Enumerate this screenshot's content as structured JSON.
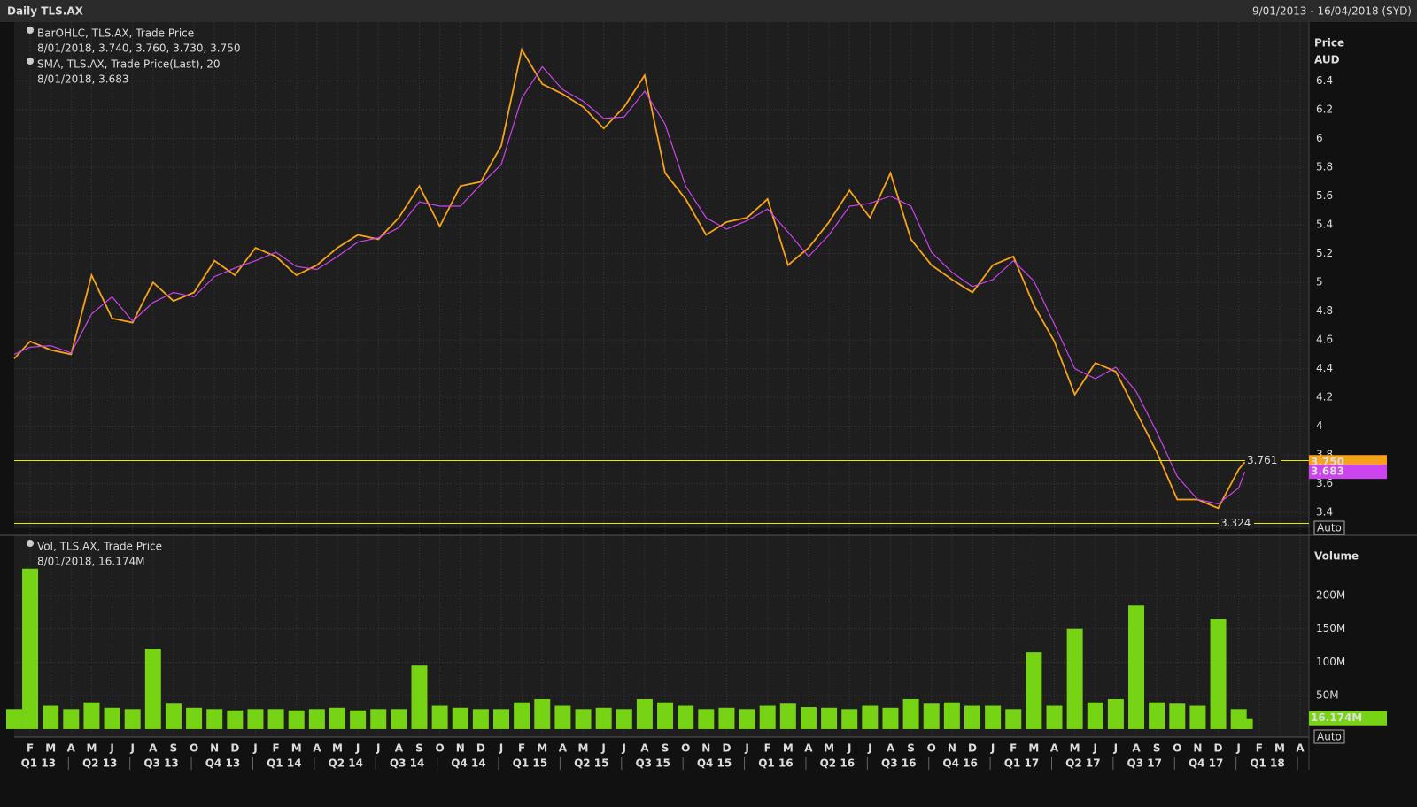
{
  "header": {
    "title": "Daily TLS.AX",
    "range": "9/01/2013 - 16/04/2018 (SYD)"
  },
  "auto_label": "Auto",
  "xlim": [
    -0.78,
    62.43
  ],
  "xticks": [
    {
      "value": 0,
      "label": "F"
    },
    {
      "value": 1,
      "label": "M"
    },
    {
      "value": 2,
      "label": "A"
    },
    {
      "value": 3,
      "label": "M"
    },
    {
      "value": 4,
      "label": "J"
    },
    {
      "value": 5,
      "label": "J"
    },
    {
      "value": 6,
      "label": "A"
    },
    {
      "value": 7,
      "label": "S"
    },
    {
      "value": 8,
      "label": "O"
    },
    {
      "value": 9,
      "label": "N"
    },
    {
      "value": 10,
      "label": "D"
    },
    {
      "value": 11,
      "label": "J"
    },
    {
      "value": 12,
      "label": "F"
    },
    {
      "value": 13,
      "label": "M"
    },
    {
      "value": 14,
      "label": "A"
    },
    {
      "value": 15,
      "label": "M"
    },
    {
      "value": 16,
      "label": "J"
    },
    {
      "value": 17,
      "label": "J"
    },
    {
      "value": 18,
      "label": "A"
    },
    {
      "value": 19,
      "label": "S"
    },
    {
      "value": 20,
      "label": "O"
    },
    {
      "value": 21,
      "label": "N"
    },
    {
      "value": 22,
      "label": "D"
    },
    {
      "value": 23,
      "label": "J"
    },
    {
      "value": 24,
      "label": "F"
    },
    {
      "value": 25,
      "label": "M"
    },
    {
      "value": 26,
      "label": "A"
    },
    {
      "value": 27,
      "label": "M"
    },
    {
      "value": 28,
      "label": "J"
    },
    {
      "value": 29,
      "label": "J"
    },
    {
      "value": 30,
      "label": "A"
    },
    {
      "value": 31,
      "label": "S"
    },
    {
      "value": 32,
      "label": "O"
    },
    {
      "value": 33,
      "label": "N"
    },
    {
      "value": 34,
      "label": "D"
    },
    {
      "value": 35,
      "label": "J"
    },
    {
      "value": 36,
      "label": "F"
    },
    {
      "value": 37,
      "label": "M"
    },
    {
      "value": 38,
      "label": "A"
    },
    {
      "value": 39,
      "label": "M"
    },
    {
      "value": 40,
      "label": "J"
    },
    {
      "value": 41,
      "label": "J"
    },
    {
      "value": 42,
      "label": "A"
    },
    {
      "value": 43,
      "label": "S"
    },
    {
      "value": 44,
      "label": "O"
    },
    {
      "value": 45,
      "label": "N"
    },
    {
      "value": 46,
      "label": "D"
    },
    {
      "value": 47,
      "label": "J"
    },
    {
      "value": 48,
      "label": "F"
    },
    {
      "value": 49,
      "label": "M"
    },
    {
      "value": 50,
      "label": "A"
    },
    {
      "value": 51,
      "label": "M"
    },
    {
      "value": 52,
      "label": "J"
    },
    {
      "value": 53,
      "label": "J"
    },
    {
      "value": 54,
      "label": "A"
    },
    {
      "value": 55,
      "label": "S"
    },
    {
      "value": 56,
      "label": "O"
    },
    {
      "value": 57,
      "label": "N"
    },
    {
      "value": 58,
      "label": "D"
    },
    {
      "value": 59,
      "label": "J"
    },
    {
      "value": 60,
      "label": "F"
    },
    {
      "value": 61,
      "label": "M"
    },
    {
      "value": 62,
      "label": "A"
    }
  ],
  "quarters": [
    {
      "value": 0.4,
      "label": "Q1 13"
    },
    {
      "value": 3.4,
      "label": "Q2 13"
    },
    {
      "value": 6.4,
      "label": "Q3 13"
    },
    {
      "value": 9.4,
      "label": "Q4 13"
    },
    {
      "value": 12.4,
      "label": "Q1 14"
    },
    {
      "value": 15.4,
      "label": "Q2 14"
    },
    {
      "value": 18.4,
      "label": "Q3 14"
    },
    {
      "value": 21.4,
      "label": "Q4 14"
    },
    {
      "value": 24.4,
      "label": "Q1 15"
    },
    {
      "value": 27.4,
      "label": "Q2 15"
    },
    {
      "value": 30.4,
      "label": "Q3 15"
    },
    {
      "value": 33.4,
      "label": "Q4 15"
    },
    {
      "value": 36.4,
      "label": "Q1 16"
    },
    {
      "value": 39.4,
      "label": "Q2 16"
    },
    {
      "value": 42.4,
      "label": "Q3 16"
    },
    {
      "value": 45.4,
      "label": "Q4 16"
    },
    {
      "value": 48.4,
      "label": "Q1 17"
    },
    {
      "value": 51.4,
      "label": "Q2 17"
    },
    {
      "value": 54.4,
      "label": "Q3 17"
    },
    {
      "value": 57.4,
      "label": "Q4 17"
    },
    {
      "value": 60.4,
      "label": "Q1 18"
    }
  ],
  "chart_data": [
    {
      "type": "line",
      "axis_label": "Price",
      "axis_unit": "AUD",
      "x": [
        -0.78,
        0,
        1,
        2,
        3,
        4,
        5,
        6,
        7,
        8,
        9,
        10,
        11,
        12,
        13,
        14,
        15,
        16,
        17,
        18,
        19,
        20,
        21,
        22,
        23,
        24,
        25,
        26,
        27,
        28,
        29,
        30,
        31,
        32,
        33,
        34,
        35,
        36,
        37,
        38,
        39,
        40,
        41,
        42,
        43,
        44,
        45,
        46,
        47,
        48,
        49,
        50,
        51,
        52,
        53,
        54,
        55,
        56,
        57,
        58,
        59,
        59.3
      ],
      "series": [
        {
          "name": "BarOHLC, TLS.AX, Trade Price",
          "legend_value": "8/01/2018, 3.740, 3.760, 3.730, 3.750",
          "color": "#f7a21b",
          "last_value_label": "3.750",
          "values": [
            4.47,
            4.59,
            4.53,
            4.5,
            5.05,
            4.75,
            4.72,
            5.0,
            4.87,
            4.93,
            5.15,
            5.05,
            5.24,
            5.18,
            5.05,
            5.12,
            5.24,
            5.33,
            5.3,
            5.45,
            5.67,
            5.39,
            5.67,
            5.7,
            5.95,
            6.62,
            6.38,
            6.31,
            6.22,
            6.07,
            6.22,
            6.44,
            5.76,
            5.58,
            5.33,
            5.42,
            5.45,
            5.58,
            5.12,
            5.24,
            5.42,
            5.64,
            5.45,
            5.76,
            5.3,
            5.12,
            5.02,
            4.93,
            5.12,
            5.18,
            4.84,
            4.59,
            4.22,
            4.44,
            4.38,
            4.1,
            3.82,
            3.49,
            3.49,
            3.43,
            3.7,
            3.75
          ]
        },
        {
          "name": "SMA, TLS.AX, Trade Price(Last),  20",
          "legend_value": "8/01/2018, 3.683",
          "color": "#cc44ee",
          "last_value_label": "3.683",
          "values": [
            4.5,
            4.55,
            4.56,
            4.51,
            4.78,
            4.9,
            4.73,
            4.86,
            4.93,
            4.9,
            5.04,
            5.1,
            5.15,
            5.21,
            5.11,
            5.09,
            5.18,
            5.28,
            5.31,
            5.38,
            5.56,
            5.53,
            5.53,
            5.68,
            5.82,
            6.28,
            6.5,
            6.34,
            6.26,
            6.14,
            6.15,
            6.33,
            6.1,
            5.67,
            5.45,
            5.37,
            5.43,
            5.51,
            5.35,
            5.18,
            5.33,
            5.53,
            5.55,
            5.6,
            5.53,
            5.21,
            5.07,
            4.97,
            5.02,
            5.15,
            5.01,
            4.71,
            4.4,
            4.33,
            4.41,
            4.24,
            3.96,
            3.65,
            3.49,
            3.46,
            3.57,
            3.683
          ]
        }
      ],
      "hlines": [
        3.761,
        3.324
      ],
      "hline_color": "#e8e800",
      "ylim": [
        3.29,
        6.81
      ],
      "yticks": [
        3.4,
        3.6,
        3.8,
        4,
        4.2,
        4.4,
        4.6,
        4.8,
        5,
        5.2,
        5.4,
        5.6,
        5.8,
        6,
        6.2,
        6.4
      ],
      "grid": true
    },
    {
      "type": "bar",
      "axis_label": "Volume",
      "x": [
        -0.78,
        0,
        1,
        2,
        3,
        4,
        5,
        6,
        7,
        8,
        9,
        10,
        11,
        12,
        13,
        14,
        15,
        16,
        17,
        18,
        19,
        20,
        21,
        22,
        23,
        24,
        25,
        26,
        27,
        28,
        29,
        30,
        31,
        32,
        33,
        34,
        35,
        36,
        37,
        38,
        39,
        40,
        41,
        42,
        43,
        44,
        45,
        46,
        47,
        48,
        49,
        50,
        51,
        52,
        53,
        54,
        55,
        56,
        57,
        58,
        59,
        59.3
      ],
      "series": [
        {
          "name": "Vol, TLS.AX, Trade Price",
          "legend_value": "8/01/2018, 16.174M",
          "color": "#77d414",
          "last_value_label": "16.174M",
          "values": [
            30,
            240,
            35,
            30,
            40,
            32,
            30,
            120,
            38,
            32,
            30,
            28,
            30,
            30,
            28,
            30,
            32,
            28,
            30,
            30,
            95,
            35,
            32,
            30,
            30,
            40,
            45,
            35,
            30,
            32,
            30,
            45,
            40,
            35,
            30,
            32,
            30,
            35,
            38,
            33,
            32,
            30,
            35,
            32,
            45,
            38,
            40,
            35,
            35,
            30,
            115,
            35,
            150,
            40,
            45,
            185,
            40,
            38,
            35,
            165,
            30,
            16.174
          ]
        }
      ],
      "ylim": [
        -12,
        290
      ],
      "yticks": [
        {
          "value": 50,
          "label": "50M"
        },
        {
          "value": 100,
          "label": "100M"
        },
        {
          "value": 150,
          "label": "150M"
        },
        {
          "value": 200,
          "label": "200M"
        }
      ],
      "grid": true
    }
  ]
}
